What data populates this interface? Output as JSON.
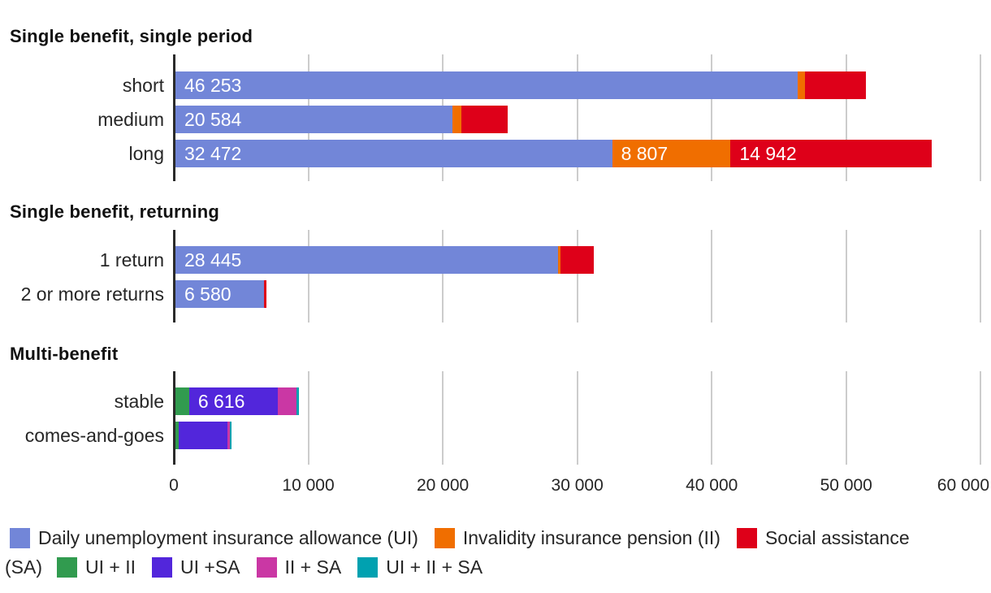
{
  "chart_data": {
    "type": "bar",
    "subtype": "horizontal-stacked-grouped",
    "x_axis": {
      "min": 0,
      "max": 60000,
      "grid": true,
      "ticks": [
        {
          "value": 0,
          "label": "0"
        },
        {
          "value": 10000,
          "label": "10 000"
        },
        {
          "value": 20000,
          "label": "20 000"
        },
        {
          "value": 30000,
          "label": "30 000"
        },
        {
          "value": 40000,
          "label": "40 000"
        },
        {
          "value": 50000,
          "label": "50 000"
        },
        {
          "value": 60000,
          "label": "60 000"
        }
      ]
    },
    "series": [
      {
        "id": "UI",
        "label": "Daily unemployment insurance allowance (UI)",
        "color": "#7286D8"
      },
      {
        "id": "II",
        "label": "Invalidity insurance pension (II)",
        "color": "#F06E00"
      },
      {
        "id": "SA",
        "label": "Social assistance (SA)",
        "color": "#DE0019"
      },
      {
        "id": "UI+II",
        "label": "UI + II",
        "color": "#319B4F"
      },
      {
        "id": "UI+SA",
        "label": "UI +SA",
        "color": "#5226DB"
      },
      {
        "id": "II+SA",
        "label": "II + SA",
        "color": "#CA37A4"
      },
      {
        "id": "UI+II+SA",
        "label": "UI + II + SA",
        "color": "#00A1B0"
      }
    ],
    "groups": [
      {
        "title": "Single benefit, single period",
        "rows": [
          {
            "label": "short",
            "segments": [
              {
                "series": "UI",
                "value": 46253,
                "label": "46 253"
              },
              {
                "series": "II",
                "value": 550
              },
              {
                "series": "SA",
                "value": 4520
              }
            ]
          },
          {
            "label": "medium",
            "segments": [
              {
                "series": "UI",
                "value": 20584,
                "label": "20 584"
              },
              {
                "series": "II",
                "value": 660
              },
              {
                "series": "SA",
                "value": 3490
              }
            ]
          },
          {
            "label": "long",
            "segments": [
              {
                "series": "UI",
                "value": 32472,
                "label": "32 472"
              },
              {
                "series": "II",
                "value": 8807,
                "label": "8 807"
              },
              {
                "series": "SA",
                "value": 14942,
                "label": "14 942"
              }
            ]
          }
        ]
      },
      {
        "title": "Single benefit, returning",
        "rows": [
          {
            "label": "1 return",
            "segments": [
              {
                "series": "UI",
                "value": 28445,
                "label": "28 445"
              },
              {
                "series": "II",
                "value": 180
              },
              {
                "series": "SA",
                "value": 2470
              }
            ]
          },
          {
            "label": "2 or more returns",
            "segments": [
              {
                "series": "UI",
                "value": 6580,
                "label": "6 580"
              },
              {
                "series": "SA",
                "value": 180
              }
            ]
          }
        ]
      },
      {
        "title": "Multi-benefit",
        "rows": [
          {
            "label": "stable",
            "segments": [
              {
                "series": "UI+II",
                "value": 1020
              },
              {
                "series": "UI+SA",
                "value": 6616,
                "label": "6 616"
              },
              {
                "series": "II+SA",
                "value": 1390
              },
              {
                "series": "UI+II+SA",
                "value": 180
              }
            ]
          },
          {
            "label": "comes-and-goes",
            "segments": [
              {
                "series": "UI+II",
                "value": 240
              },
              {
                "series": "UI+SA",
                "value": 3610
              },
              {
                "series": "II+SA",
                "value": 180
              },
              {
                "series": "UI+II+SA",
                "value": 120
              }
            ]
          }
        ]
      }
    ]
  },
  "legend": {
    "rows": [
      {
        "prefix": "",
        "items": [
          {
            "series": "UI",
            "label": "Daily unemployment insurance allowance (UI)"
          },
          {
            "series": "II",
            "label": "Invalidity insurance pension (II)"
          },
          {
            "series": "SA",
            "label": "Social assistance"
          }
        ]
      },
      {
        "prefix": "(SA)",
        "items": [
          {
            "series": "UI+II",
            "label": "UI + II"
          },
          {
            "series": "UI+SA",
            "label": "UI +SA"
          },
          {
            "series": "II+SA",
            "label": "II + SA"
          },
          {
            "series": "UI+II+SA",
            "label": "UI + II + SA"
          }
        ]
      }
    ]
  }
}
